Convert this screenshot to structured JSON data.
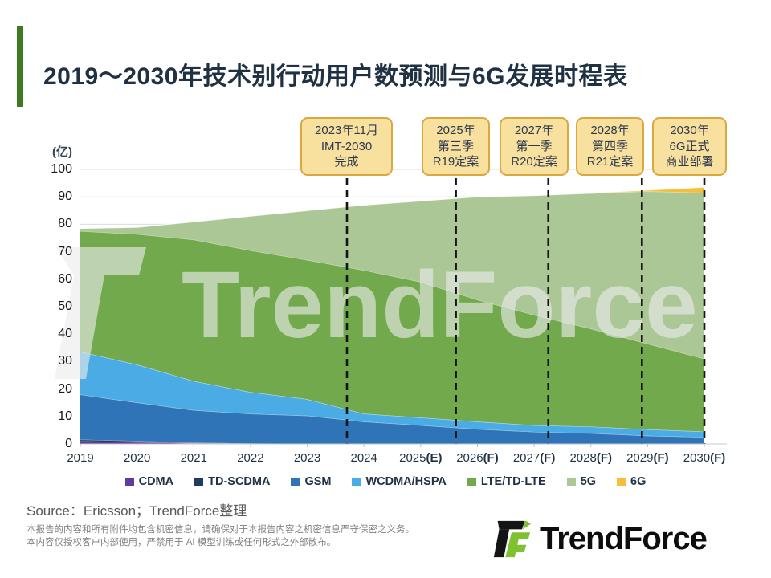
{
  "title": "2019～2030年技术别行动用户数预测与6G发展时程表",
  "y_axis": {
    "unit": "(亿)",
    "ticks": [
      0,
      10,
      20,
      30,
      40,
      50,
      60,
      70,
      80,
      90,
      100
    ]
  },
  "milestones": [
    {
      "lines": [
        "2023年11月",
        "IMT-2030",
        "完成"
      ],
      "year": 2023.7
    },
    {
      "lines": [
        "2025年",
        "第三季",
        "R19定案"
      ],
      "year": 2025.62
    },
    {
      "lines": [
        "2027年",
        "第一季",
        "R20定案"
      ],
      "year": 2027.25
    },
    {
      "lines": [
        "2028年",
        "第四季",
        "R21定案"
      ],
      "year": 2028.9
    },
    {
      "lines": [
        "2030年",
        "6G正式",
        "商业部署"
      ],
      "year": 2030
    }
  ],
  "chart_data": {
    "type": "area",
    "stacked": true,
    "title": "2019～2030年技术别行动用户数预测与6G发展时程表",
    "ylabel": "(亿)",
    "ylim": [
      0,
      100
    ],
    "grid": "horizontal",
    "legend_position": "bottom",
    "categories": [
      "2019",
      "2020",
      "2021",
      "2022",
      "2023",
      "2024",
      "2025(E)",
      "2026(F)",
      "2027(F)",
      "2028(F)",
      "2029(F)",
      "2030(F)"
    ],
    "series": [
      {
        "name": "CDMA",
        "color": "#5E3B9E",
        "values": [
          1.0,
          0.7,
          0.3,
          0.1,
          0.1,
          0,
          0,
          0,
          0,
          0,
          0,
          0
        ]
      },
      {
        "name": "TD-SCDMA",
        "color": "#1F3B61",
        "values": [
          0.6,
          0.4,
          0.2,
          0.1,
          0,
          0,
          0,
          0,
          0,
          0,
          0,
          0
        ]
      },
      {
        "name": "GSM",
        "color": "#2E74B6",
        "values": [
          16.4,
          14.0,
          11.8,
          10.8,
          10.2,
          8.1,
          6.8,
          5.4,
          4.4,
          3.9,
          3.0,
          2.5
        ]
      },
      {
        "name": "WCDMA/HSPA",
        "color": "#4BACE5",
        "values": [
          15.6,
          13.8,
          10.6,
          7.9,
          6.0,
          2.9,
          2.8,
          2.7,
          2.4,
          2.4,
          2.3,
          2.0
        ]
      },
      {
        "name": "LTE/TD-LTE",
        "color": "#72A94D",
        "values": [
          43.9,
          47.5,
          51.5,
          51.6,
          50.7,
          52.3,
          49.4,
          44.4,
          40.2,
          35.7,
          31.2,
          26.5
        ]
      },
      {
        "name": "5G",
        "color": "#ABC795",
        "values": [
          1.0,
          2.5,
          6.5,
          12.5,
          18.0,
          23.7,
          29.5,
          37.5,
          43.5,
          49.3,
          55.5,
          60.5
        ]
      },
      {
        "name": "6G",
        "color": "#F5BE3E",
        "values": [
          0,
          0,
          0,
          0,
          0,
          0,
          0,
          0,
          0,
          0,
          0.4,
          2.0
        ]
      }
    ],
    "annotations": [
      "2023年11月 IMT-2030 完成",
      "2025年第三季 R19定案",
      "2027年第一季 R20定案",
      "2028年第四季 R21定案",
      "2030年6G正式商业部署"
    ]
  },
  "watermark": "TrendForce",
  "source": "Source：Ericsson；TrendForce整理",
  "disclaimers": [
    "本报告的内容和所有附件均包含机密信息，请确保对于本报告内容之机密信息严守保密之义务。",
    "本内容仅授权客户内部使用，严禁用于 AI 模型训练或任何形式之外部散布。"
  ],
  "logo": {
    "text": "TrendForce",
    "green": "#7FC131",
    "black": "#141414"
  }
}
